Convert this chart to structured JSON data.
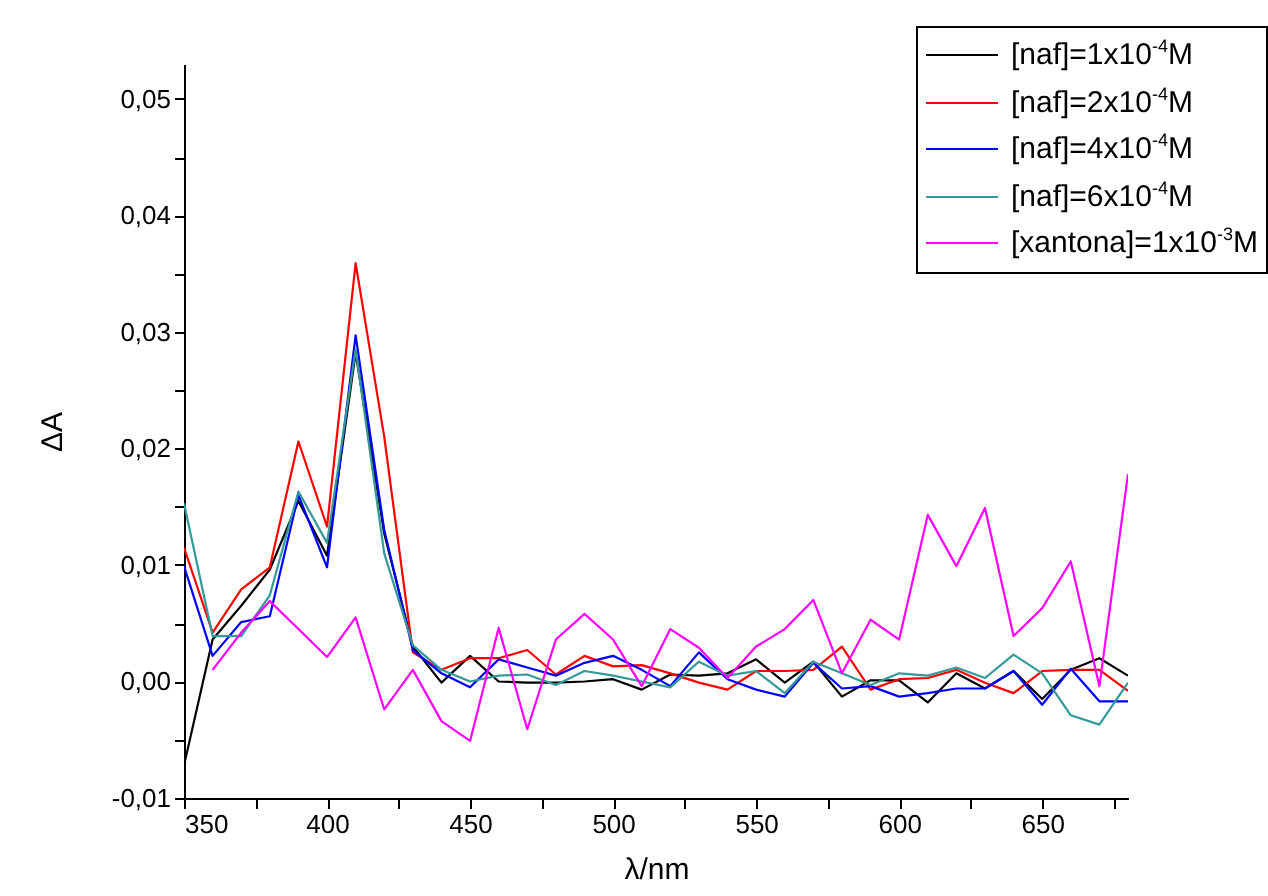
{
  "chart_data": {
    "type": "line",
    "xlabel": "λ/nm",
    "ylabel": "ΔA",
    "legend": "top right",
    "grid": false,
    "x": [
      350,
      360,
      370,
      380,
      390,
      400,
      410,
      420,
      430,
      440,
      450,
      460,
      470,
      480,
      490,
      500,
      510,
      520,
      530,
      540,
      550,
      560,
      570,
      580,
      590,
      600,
      610,
      620,
      630,
      640,
      650,
      660,
      670,
      680
    ],
    "xlim": [
      350,
      680
    ],
    "xticks": [
      350,
      {
        "value": 375,
        "label": null
      },
      400,
      {
        "value": 425,
        "label": null
      },
      450,
      {
        "value": 475,
        "label": null
      },
      500,
      {
        "value": 525,
        "label": null
      },
      550,
      {
        "value": 575,
        "label": null
      },
      600,
      {
        "value": 625,
        "label": null
      },
      650,
      {
        "value": 675,
        "label": null
      }
    ],
    "ylim": [
      -0.01,
      0.053
    ],
    "yticks": [
      {
        "value": -0.01,
        "label": "-0,01"
      },
      {
        "value": -0.005,
        "label": null
      },
      {
        "value": 0,
        "label": "0,00"
      },
      {
        "value": 0.005,
        "label": null
      },
      {
        "value": 0.01,
        "label": "0,01"
      },
      {
        "value": 0.015,
        "label": null
      },
      {
        "value": 0.02,
        "label": "0,02"
      },
      {
        "value": 0.025,
        "label": null
      },
      {
        "value": 0.03,
        "label": "0,03"
      },
      {
        "value": 0.035,
        "label": null
      },
      {
        "value": 0.04,
        "label": "0,04"
      },
      {
        "value": 0.045,
        "label": null
      },
      {
        "value": 0.05,
        "label": "0,05"
      }
    ],
    "series": [
      {
        "name": "[naf]=1x10$^{-4}$M",
        "color": "#000000",
        "values": [
          -0.0072,
          0.0036,
          0.0065,
          0.0096,
          0.0155,
          0.0108,
          0.0282,
          0.0127,
          0.003,
          -0.0001,
          0.0022,
          0.0,
          -0.0001,
          -0.0001,
          0.0,
          0.0002,
          -0.0007,
          0.0006,
          0.0005,
          0.0007,
          0.0019,
          -0.0001,
          0.0017,
          -0.0013,
          0.0001,
          0.0001,
          -0.0018,
          0.0007,
          -0.0006,
          0.0009,
          -0.0015,
          0.001,
          0.002,
          0.0005
        ]
      },
      {
        "name": "[naf]=2x10$^{-4}$M",
        "color": "#ff0000",
        "values": [
          0.0115,
          0.0042,
          0.0079,
          0.0098,
          0.0206,
          0.0133,
          0.0359,
          0.021,
          0.0025,
          0.001,
          0.002,
          0.002,
          0.0027,
          0.0006,
          0.0022,
          0.0013,
          0.0014,
          0.0007,
          -0.0001,
          -0.0007,
          0.0009,
          0.0009,
          0.001,
          0.003,
          -0.0007,
          0.0002,
          0.0003,
          0.001,
          -0.0001,
          -0.001,
          0.0009,
          0.001,
          0.001,
          -0.0008
        ]
      },
      {
        "name": "[naf]=4x10$^{-4}$M",
        "color": "#0000ff",
        "values": [
          0.0099,
          0.0022,
          0.0051,
          0.0056,
          0.016,
          0.0098,
          0.0297,
          0.013,
          0.0027,
          0.0007,
          -0.0005,
          0.0019,
          0.0012,
          0.0005,
          0.0016,
          0.0022,
          0.001,
          -0.0004,
          0.0025,
          0.0002,
          -0.0007,
          -0.0013,
          0.0016,
          -0.0006,
          -0.0004,
          -0.0013,
          -0.001,
          -0.0006,
          -0.0006,
          0.0009,
          -0.002,
          0.0011,
          -0.0017,
          -0.0017
        ]
      },
      {
        "name": "[naf]=6x10$^{-4}$M",
        "color": "#339999",
        "values": [
          0.0153,
          0.0039,
          0.0039,
          0.0074,
          0.0163,
          0.0119,
          0.0285,
          0.011,
          0.0031,
          0.001,
          0.0,
          0.0005,
          0.0006,
          -0.0003,
          0.0009,
          0.0005,
          0.0,
          -0.0005,
          0.0017,
          0.0005,
          0.0009,
          -0.001,
          0.0017,
          0.0007,
          -0.0003,
          0.0007,
          0.0005,
          0.0012,
          0.0003,
          0.0023,
          0.0007,
          -0.0029,
          -0.0037,
          -0.0001
        ]
      },
      {
        "name": "[xantona]=1x10$^{-3}$M",
        "color": "#ff00ff",
        "values": [
          null,
          0.001,
          0.0042,
          0.0069,
          0.0045,
          0.0021,
          0.0055,
          -0.0024,
          0.001,
          -0.0034,
          -0.0051,
          0.0046,
          -0.0041,
          0.0036,
          0.0058,
          0.0036,
          -0.0004,
          0.0045,
          0.0029,
          0.0003,
          0.003,
          0.0045,
          0.007,
          0.0007,
          0.0053,
          0.0036,
          0.0143,
          0.0099,
          0.0149,
          0.0039,
          0.0063,
          0.0103,
          -0.0004,
          0.0178
        ]
      }
    ]
  }
}
